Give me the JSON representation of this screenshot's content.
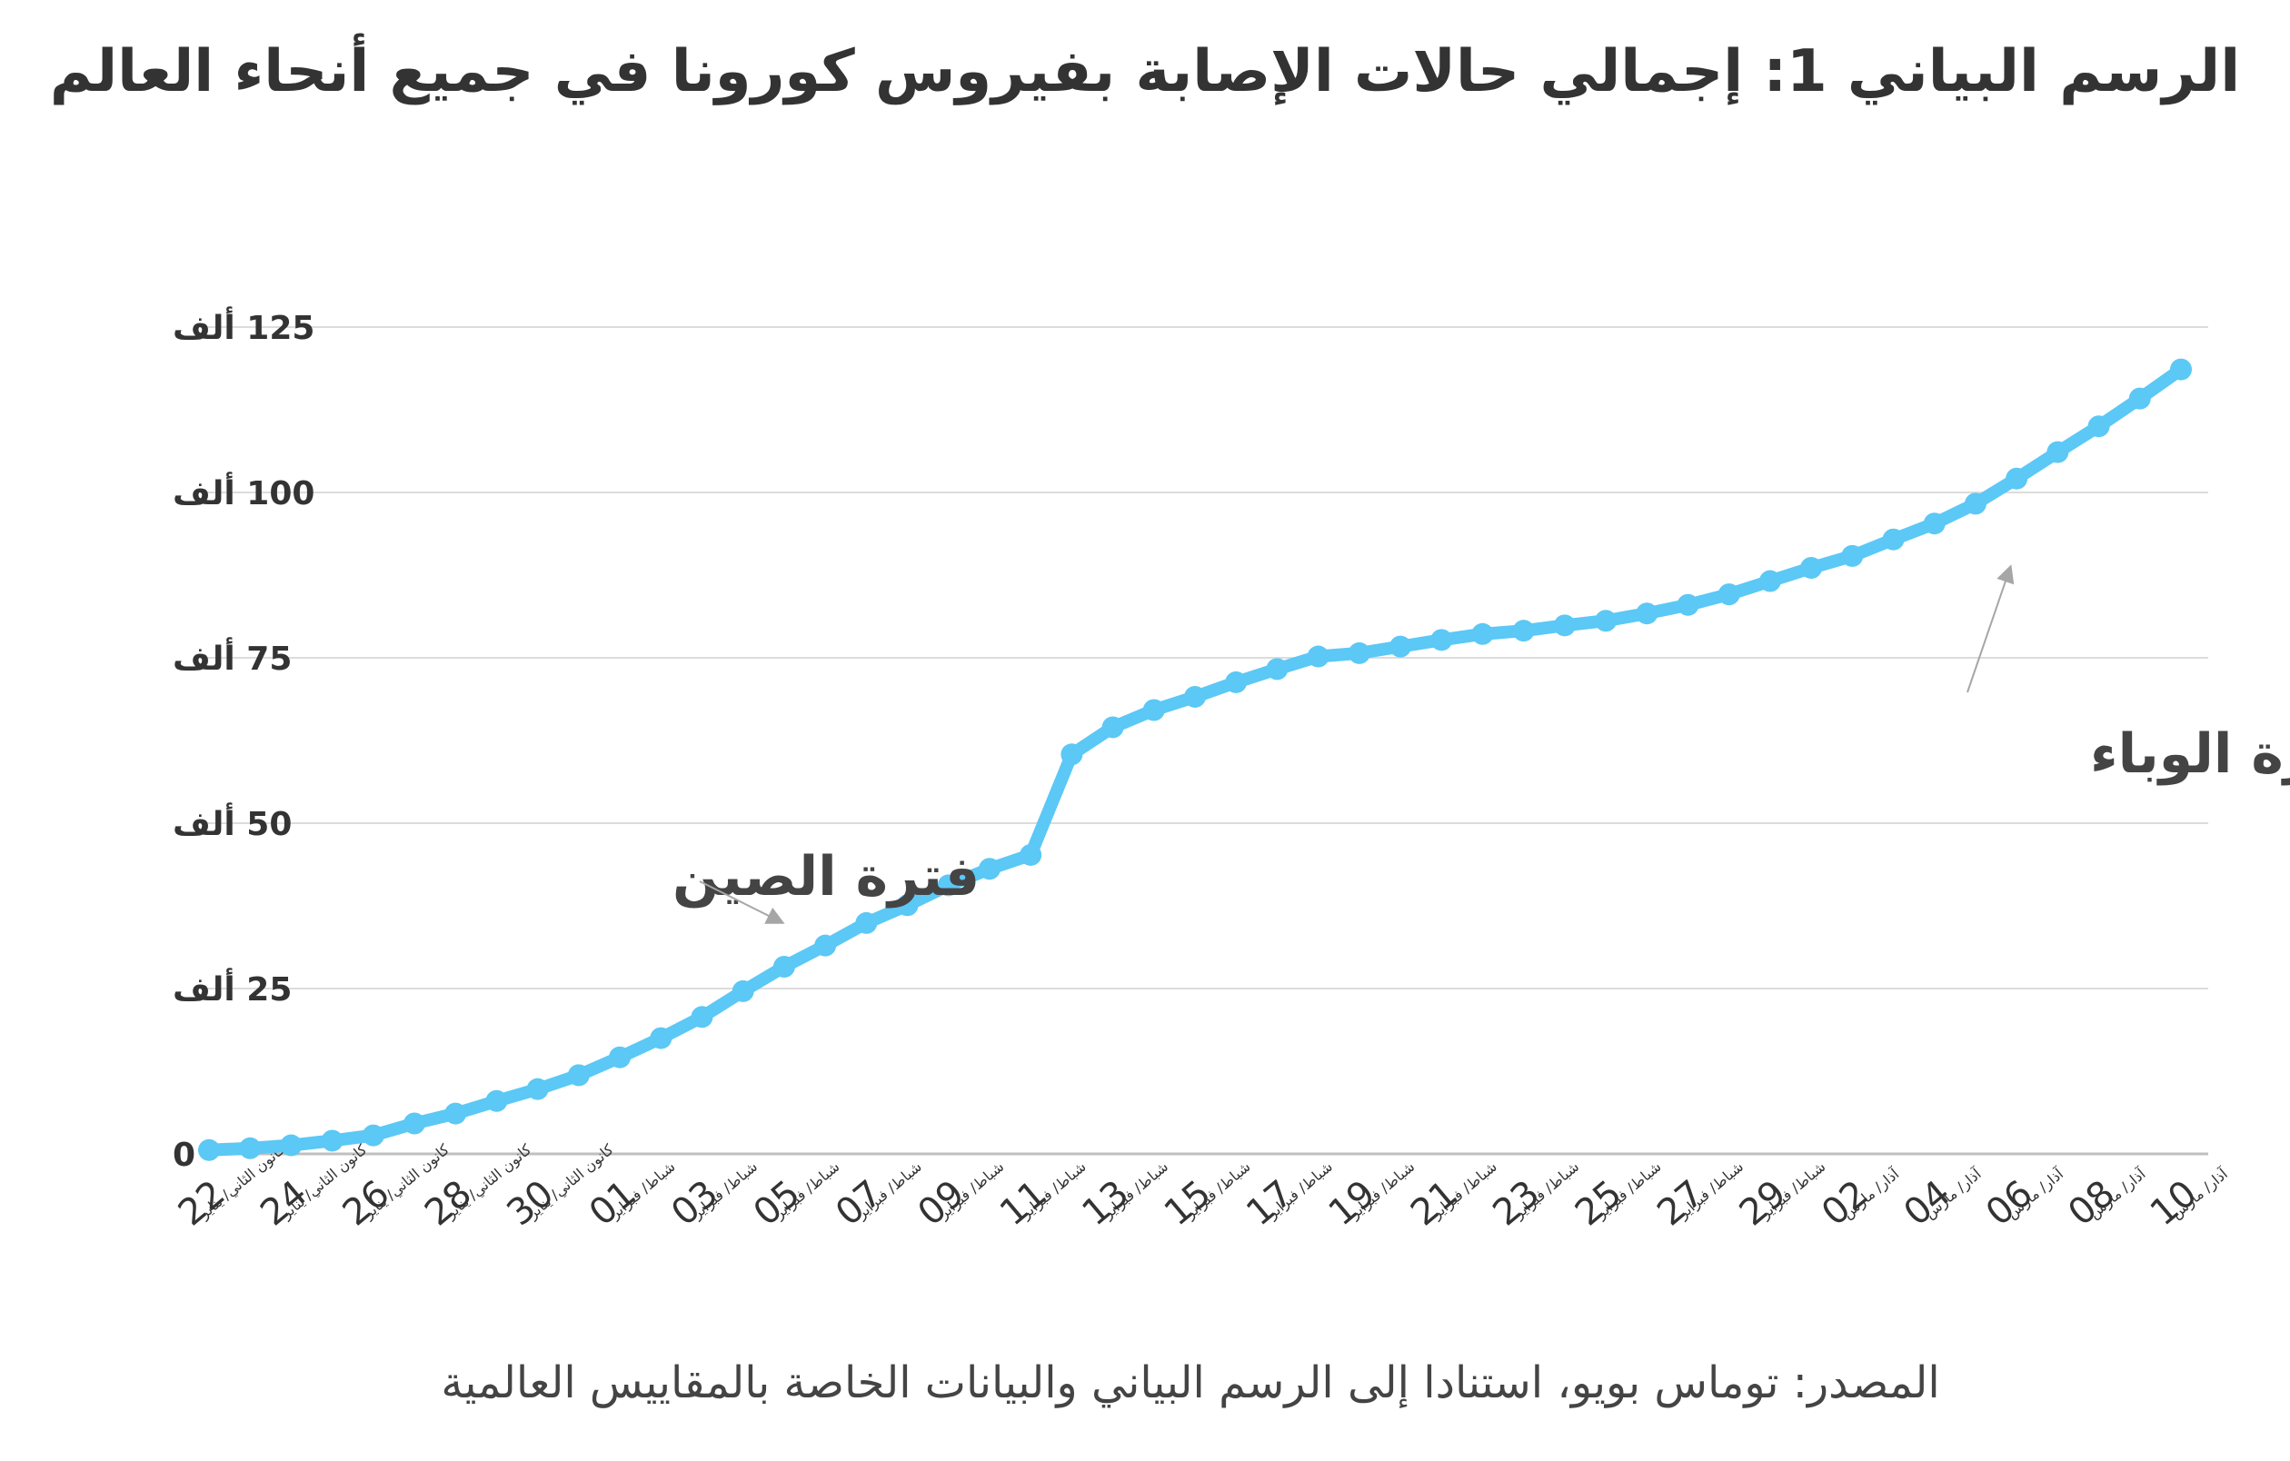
{
  "title": "الرسم البياني 1: إجمالي حالات الإصابة بفيروس كورونا في جميع أنحاء العالم",
  "source": "المصدر: توماس بويو، استنادا إلى الرسم البياني والبيانات الخاصة بالمقاييس العالمية",
  "colors": {
    "line": "#5bc8f5",
    "text": "#333333",
    "grid": "#dcdcdc",
    "arrow": "#a6a6a6"
  },
  "chart_data": {
    "type": "line",
    "title": "الرسم البياني 1: إجمالي حالات الإصابة بفيروس كورونا في جميع أنحاء العالم",
    "xlabel": "",
    "ylabel": "",
    "ylim": [
      0,
      125000
    ],
    "yticks": [
      0,
      25000,
      50000,
      75000,
      100000,
      125000
    ],
    "ytick_labels": [
      "0",
      "25 ألف",
      "50 ألف",
      "75 ألف",
      "100 ألف",
      "125 ألف"
    ],
    "grid": true,
    "legend": "none",
    "x": [
      "2020-01-22",
      "2020-01-23",
      "2020-01-24",
      "2020-01-25",
      "2020-01-26",
      "2020-01-27",
      "2020-01-28",
      "2020-01-29",
      "2020-01-30",
      "2020-01-31",
      "2020-02-01",
      "2020-02-02",
      "2020-02-03",
      "2020-02-04",
      "2020-02-05",
      "2020-02-06",
      "2020-02-07",
      "2020-02-08",
      "2020-02-09",
      "2020-02-10",
      "2020-02-11",
      "2020-02-12",
      "2020-02-13",
      "2020-02-14",
      "2020-02-15",
      "2020-02-16",
      "2020-02-17",
      "2020-02-18",
      "2020-02-19",
      "2020-02-20",
      "2020-02-21",
      "2020-02-22",
      "2020-02-23",
      "2020-02-24",
      "2020-02-25",
      "2020-02-26",
      "2020-02-27",
      "2020-02-28",
      "2020-02-29",
      "2020-03-01",
      "2020-03-02",
      "2020-03-03",
      "2020-03-04",
      "2020-03-05",
      "2020-03-06",
      "2020-03-07",
      "2020-03-08",
      "2020-03-09",
      "2020-03-10"
    ],
    "series": [
      {
        "values": [
          580,
          850,
          1300,
          2000,
          2800,
          4600,
          6100,
          8000,
          9800,
          11900,
          14600,
          17500,
          20700,
          24600,
          28300,
          31500,
          34900,
          37600,
          40600,
          43100,
          45200,
          60400,
          64500,
          67100,
          69100,
          71300,
          73300,
          75200,
          75700,
          76700,
          77700,
          78600,
          79100,
          79900,
          80600,
          81700,
          83000,
          84600,
          86600,
          88600,
          90400,
          92900,
          95300,
          98300,
          102100,
          106100,
          110000,
          114200,
          118600
        ]
      }
    ],
    "tick_days": [
      "22",
      "24",
      "26",
      "28",
      "30",
      "01",
      "03",
      "05",
      "07",
      "09",
      "11",
      "13",
      "15",
      "17",
      "19",
      "21",
      "23",
      "25",
      "27",
      "29",
      "02",
      "04",
      "06",
      "08",
      "10"
    ],
    "tick_months": [
      "كانون الثاني/ يناير",
      "كانون الثاني/ يناير",
      "كانون الثاني/ يناير",
      "كانون الثاني/ يناير",
      "كانون الثاني/ يناير",
      "شباط/ فبراير",
      "شباط/ فبراير",
      "شباط/ فبراير",
      "شباط/ فبراير",
      "شباط/ فبراير",
      "شباط/ فبراير",
      "شباط/ فبراير",
      "شباط/ فبراير",
      "شباط/ فبراير",
      "شباط/ فبراير",
      "شباط/ فبراير",
      "شباط/ فبراير",
      "شباط/ فبراير",
      "شباط/ فبراير",
      "شباط/ فبراير",
      "آذار/ مارس",
      "آذار/ مارس",
      "آذار/ مارس",
      "آذار/ مارس",
      "آذار/ مارس"
    ],
    "annotations": [
      {
        "text": "فترة الصين",
        "target_date": "2020-02-05",
        "target_value": 28300
      },
      {
        "text": "فترة الوباء",
        "target_date": "2020-03-06",
        "target_value": 102100
      }
    ]
  }
}
